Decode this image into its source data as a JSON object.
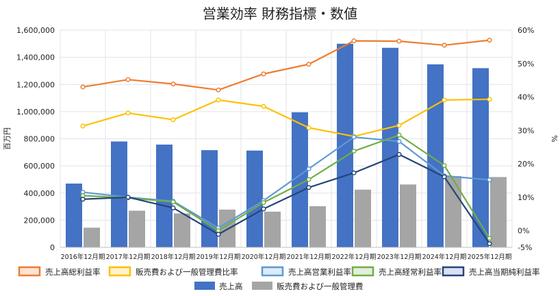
{
  "chart_data": {
    "type": "bar",
    "title": "営業効率 財務指標・数値",
    "categories": [
      "2016年12月期",
      "2017年12月期",
      "2018年12月期",
      "2019年12月期",
      "2020年12月期",
      "2021年12月期",
      "2022年12月期",
      "2023年12月期",
      "2024年12月期",
      "2025年12月期"
    ],
    "ylabel": "百万円",
    "ylabel_right": "%",
    "ylim": [
      0,
      1600000
    ],
    "ylim_right": [
      -5,
      60
    ],
    "yticks": [
      "0",
      "200,000",
      "400,000",
      "600,000",
      "800,000",
      "1,000,000",
      "1,200,000",
      "1,400,000",
      "1,600,000"
    ],
    "yticks_right": [
      "-5%",
      "0%",
      "10%",
      "20%",
      "30%",
      "40%",
      "50%",
      "60%"
    ],
    "grid": true,
    "legend_position": "bottom",
    "bar_series": [
      {
        "name": "売上高",
        "color": "#4472c4",
        "values": [
          470000,
          780000,
          757000,
          716000,
          713000,
          995000,
          1500000,
          1470000,
          1348000,
          1320000
        ]
      },
      {
        "name": "販売費および一般管理費",
        "color": "#a5a5a5",
        "values": [
          145000,
          270000,
          250000,
          278000,
          263000,
          303000,
          425000,
          463000,
          525000,
          518000
        ]
      }
    ],
    "line_series": [
      {
        "name": "売上高総利益率",
        "color": "#ed7d31",
        "values": [
          43.0,
          45.2,
          43.9,
          42.1,
          46.9,
          49.8,
          56.8,
          56.7,
          55.5,
          57.0
        ]
      },
      {
        "name": "販売費および一般管理費比率",
        "color": "#ffc000",
        "values": [
          31.3,
          35.2,
          33.2,
          39.1,
          37.2,
          30.8,
          28.2,
          31.5,
          39.1,
          39.3
        ]
      },
      {
        "name": "売上高営業利益率",
        "color": "#5b9bd5",
        "values": [
          11.5,
          10.0,
          8.8,
          0.8,
          9.0,
          18.5,
          28.0,
          26.7,
          16.4,
          15.2
        ]
      },
      {
        "name": "売上高経常利益率",
        "color": "#70ad47",
        "values": [
          10.5,
          9.8,
          8.6,
          0.0,
          8.4,
          15.3,
          23.8,
          28.6,
          19.5,
          -2.3
        ]
      },
      {
        "name": "売上高当期純利益率",
        "color": "#264478",
        "values": [
          9.4,
          10.0,
          6.8,
          -1.1,
          6.5,
          12.9,
          17.3,
          22.8,
          16.1,
          -3.9
        ]
      }
    ],
    "legend": [
      {
        "name": "売上高総利益率",
        "kind": "line",
        "color": "#ed7d31"
      },
      {
        "name": "販売費および一般管理費比率",
        "kind": "line",
        "color": "#ffc000"
      },
      {
        "name": "売上高営業利益率",
        "kind": "line",
        "color": "#5b9bd5"
      },
      {
        "name": "売上高経常利益率",
        "kind": "line",
        "color": "#70ad47"
      },
      {
        "name": "売上高当期純利益率",
        "kind": "line",
        "color": "#264478"
      },
      {
        "name": "売上高",
        "kind": "bar",
        "color": "#4472c4"
      },
      {
        "name": "販売費および一般管理費",
        "kind": "bar",
        "color": "#a5a5a5"
      }
    ]
  }
}
